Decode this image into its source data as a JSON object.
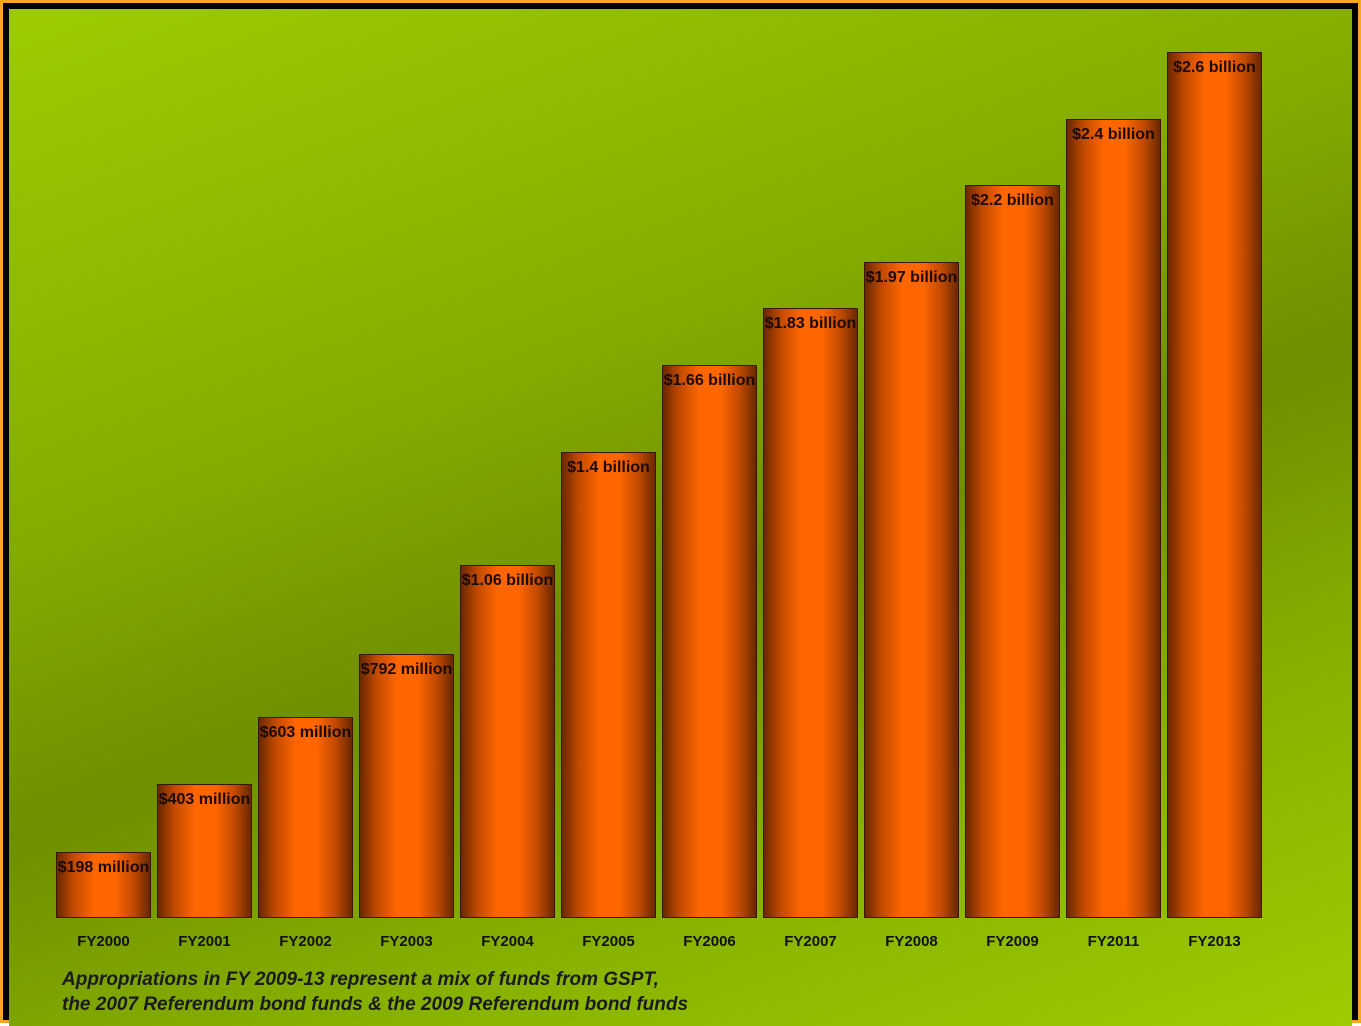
{
  "chart_data": {
    "type": "bar",
    "categories": [
      "FY2000",
      "FY2001",
      "FY2002",
      "FY2003",
      "FY2004",
      "FY2005",
      "FY2006",
      "FY2007",
      "FY2008",
      "FY2009",
      "FY2011",
      "FY2013"
    ],
    "values": [
      198,
      403,
      603,
      792,
      1060,
      1400,
      1660,
      1830,
      1970,
      2200,
      2400,
      2600
    ],
    "value_labels": [
      "$198 million",
      "$403 million",
      "$603 million",
      "$792 million",
      "$1.06 billion",
      "$1.4 billion",
      "$1.66 billion",
      "$1.83 billion",
      "$1.97 billion",
      "$2.2 billion",
      "$2.4 billion",
      "$2.6 billion"
    ],
    "color": "#ff6600",
    "note": [
      "Appropriations in FY 2009-13 represent a mix of funds from GSPT,",
      "the 2007 Referendum bond funds & the 2009 Referendum bond funds"
    ]
  }
}
